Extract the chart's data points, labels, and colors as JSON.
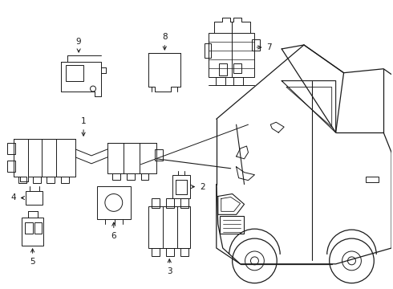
{
  "bg_color": "#ffffff",
  "line_color": "#1a1a1a",
  "fig_width": 4.9,
  "fig_height": 3.6,
  "dpi": 100,
  "lw": 0.7
}
